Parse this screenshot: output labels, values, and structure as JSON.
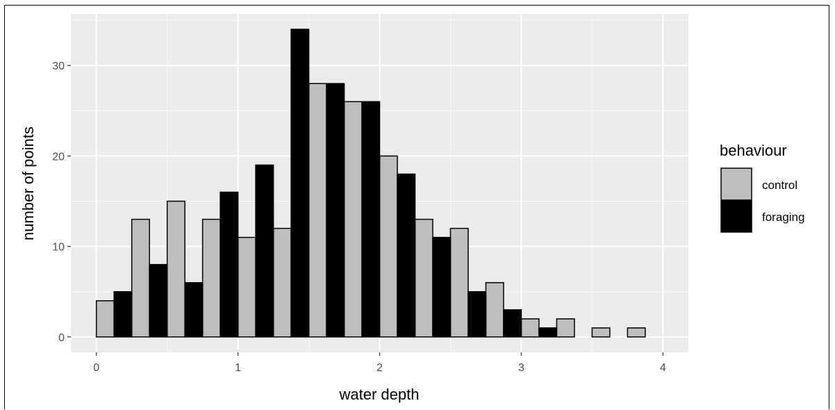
{
  "chart_data": {
    "type": "bar",
    "xlabel": "water depth",
    "ylabel": "number of points",
    "xlim": [
      -0.18,
      4.18
    ],
    "ylim": [
      -1.7,
      35.7
    ],
    "xticks": [
      0,
      1,
      2,
      3,
      4
    ],
    "yticks": [
      0,
      10,
      20,
      30
    ],
    "bin_width": 0.25,
    "bins": [
      0,
      0.25,
      0.5,
      0.75,
      1,
      1.25,
      1.5,
      1.75,
      2,
      2.25,
      2.5,
      2.75,
      3,
      3.25,
      3.5,
      3.75
    ],
    "series": [
      {
        "name": "control",
        "color": "#bebebe",
        "values": [
          4,
          13,
          15,
          13,
          11,
          12,
          28,
          26,
          20,
          13,
          12,
          6,
          2,
          2,
          1,
          1
        ]
      },
      {
        "name": "foraging",
        "color": "#000000",
        "values": [
          5,
          8,
          6,
          16,
          19,
          34,
          28,
          26,
          18,
          11,
          5,
          3,
          1,
          0,
          0,
          0
        ]
      }
    ],
    "grid": true,
    "panel_background": "#ebebeb",
    "legend": {
      "title": "behaviour",
      "position": "right"
    }
  }
}
